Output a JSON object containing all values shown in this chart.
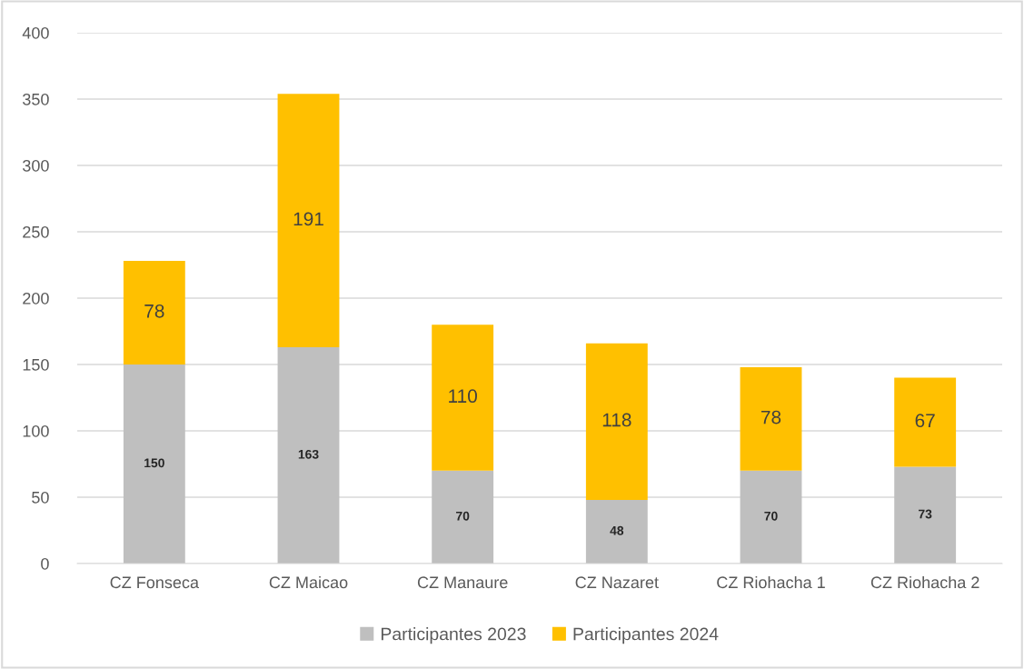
{
  "chart_data": {
    "type": "bar",
    "stacked": true,
    "categories": [
      "CZ Fonseca",
      "CZ Maicao",
      "CZ Manaure",
      "CZ Nazaret",
      "CZ Riohacha 1",
      "CZ Riohacha 2"
    ],
    "series": [
      {
        "name": "Participantes 2023",
        "color": "#bfbfbf",
        "values": [
          150,
          163,
          70,
          48,
          70,
          73
        ]
      },
      {
        "name": "Participantes 2024",
        "color": "#ffc000",
        "values": [
          78,
          191,
          110,
          118,
          78,
          67
        ]
      }
    ],
    "ylim": [
      0,
      400
    ],
    "yticks": [
      0,
      50,
      100,
      150,
      200,
      250,
      300,
      350,
      400
    ],
    "grid": "y",
    "legend": "bottom",
    "data_labels": true
  }
}
